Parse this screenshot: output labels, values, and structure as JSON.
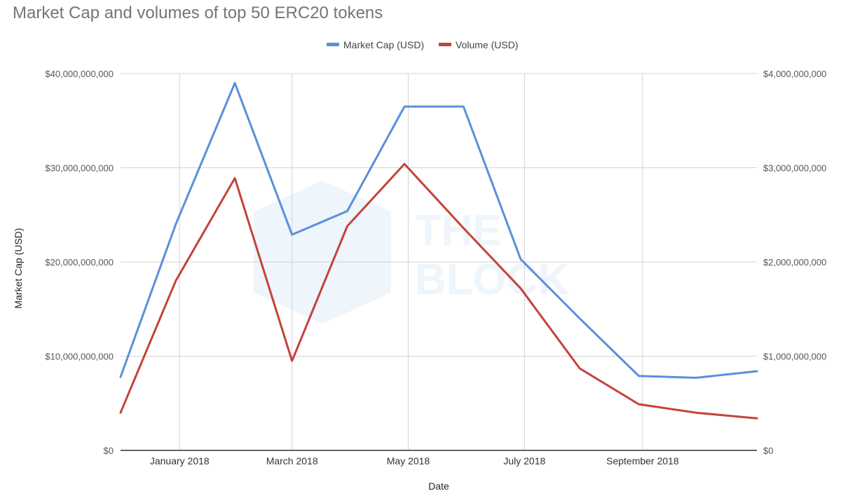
{
  "chart_data": {
    "type": "line",
    "title": "Market Cap and volumes of top 50 ERC20 tokens",
    "xlabel": "Date",
    "ylabel": "Market Cap (USD)",
    "x_ticks": [
      "January 2018",
      "March 2018",
      "May 2018",
      "July 2018",
      "September 2018"
    ],
    "x_tick_positions_days": [
      31,
      90,
      151,
      212,
      274
    ],
    "x_range_days": [
      0,
      334
    ],
    "y_left": {
      "min": 0,
      "max": 40000000000,
      "ticks": [
        "$0",
        "$10,000,000,000",
        "$20,000,000,000",
        "$30,000,000,000",
        "$40,000,000,000"
      ]
    },
    "y_right": {
      "min": 0,
      "max": 4000000000,
      "ticks": [
        "$0",
        "$1,000,000,000",
        "$2,000,000,000",
        "$3,000,000,000",
        "$4,000,000,000"
      ]
    },
    "series": [
      {
        "name": "Market Cap (USD)",
        "axis": "left",
        "color": "#5a8fdc",
        "x_days": [
          0,
          29,
          60,
          90,
          119,
          149,
          180,
          210,
          241,
          272,
          302,
          334
        ],
        "values": [
          7800000000,
          24000000000,
          39000000000,
          22900000000,
          25400000000,
          36500000000,
          36500000000,
          20300000000,
          14000000000,
          7900000000,
          7700000000,
          8400000000
        ]
      },
      {
        "name": "Volume (USD)",
        "axis": "right",
        "color": "#c4423a",
        "x_days": [
          0,
          29,
          60,
          90,
          119,
          149,
          180,
          210,
          241,
          272,
          302,
          334
        ],
        "values": [
          400000000,
          1800000000,
          2890000000,
          950000000,
          2380000000,
          3040000000,
          2360000000,
          1720000000,
          870000000,
          490000000,
          400000000,
          340000000
        ]
      }
    ],
    "legend": "top-center",
    "grid": true
  },
  "watermark": {
    "line1": "THE",
    "line2": "BLOCK"
  }
}
